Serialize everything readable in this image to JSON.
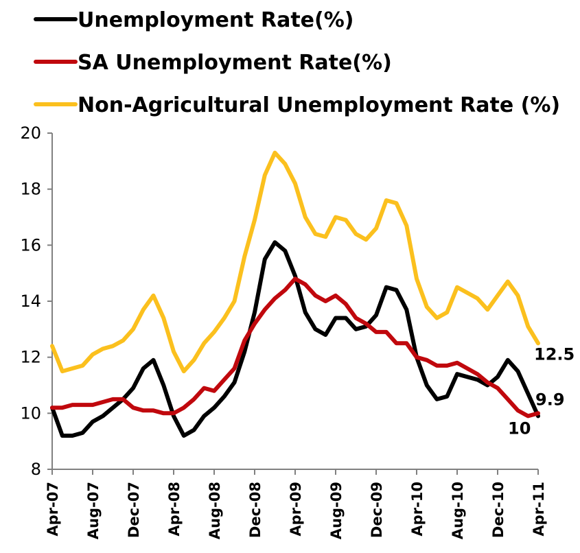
{
  "chart_data": {
    "type": "line",
    "title": "",
    "xlabel": "",
    "ylabel": "",
    "ylim": [
      8,
      20
    ],
    "yticks": [
      8,
      10,
      12,
      14,
      16,
      18,
      20
    ],
    "grid": false,
    "legend_position": "top",
    "x": [
      "Apr-07",
      "May-07",
      "Jun-07",
      "Jul-07",
      "Aug-07",
      "Sep-07",
      "Oct-07",
      "Nov-07",
      "Dec-07",
      "Jan-08",
      "Feb-08",
      "Mar-08",
      "Apr-08",
      "May-08",
      "Jun-08",
      "Jul-08",
      "Aug-08",
      "Sep-08",
      "Oct-08",
      "Nov-08",
      "Dec-08",
      "Jan-09",
      "Feb-09",
      "Mar-09",
      "Apr-09",
      "May-09",
      "Jun-09",
      "Jul-09",
      "Aug-09",
      "Sep-09",
      "Oct-09",
      "Nov-09",
      "Dec-09",
      "Jan-10",
      "Feb-10",
      "Mar-10",
      "Apr-10",
      "May-10",
      "Jun-10",
      "Jul-10",
      "Aug-10",
      "Sep-10",
      "Oct-10",
      "Nov-10",
      "Dec-10",
      "Jan-11",
      "Feb-11",
      "Mar-11",
      "Apr-11"
    ],
    "x_tick_labels": [
      "Apr-07",
      "Aug-07",
      "Dec-07",
      "Apr-08",
      "Aug-08",
      "Dec-08",
      "Apr-09",
      "Aug-09",
      "Dec-09",
      "Apr-10",
      "Aug-10",
      "Dec-10",
      "Apr-11"
    ],
    "series": [
      {
        "name": "Unemployment Rate(%)",
        "color": "#000000",
        "values": [
          10.2,
          9.2,
          9.2,
          9.3,
          9.7,
          9.9,
          10.2,
          10.5,
          10.9,
          11.6,
          11.9,
          11.0,
          9.9,
          9.2,
          9.4,
          9.9,
          10.2,
          10.6,
          11.1,
          12.2,
          13.6,
          15.5,
          16.1,
          15.8,
          14.9,
          13.6,
          13.0,
          12.8,
          13.4,
          13.4,
          13.0,
          13.1,
          13.5,
          14.5,
          14.4,
          13.7,
          12.0,
          11.0,
          10.5,
          10.6,
          11.4,
          11.3,
          11.2,
          11.0,
          11.3,
          11.9,
          11.5,
          10.7,
          9.9
        ],
        "end_label": "9.9"
      },
      {
        "name": "SA Unemployment Rate(%)",
        "color": "#c0080d",
        "values": [
          10.2,
          10.2,
          10.3,
          10.3,
          10.3,
          10.4,
          10.5,
          10.5,
          10.2,
          10.1,
          10.1,
          10.0,
          10.0,
          10.2,
          10.5,
          10.9,
          10.8,
          11.2,
          11.6,
          12.6,
          13.2,
          13.7,
          14.1,
          14.4,
          14.8,
          14.6,
          14.2,
          14.0,
          14.2,
          13.9,
          13.4,
          13.2,
          12.9,
          12.9,
          12.5,
          12.5,
          12.0,
          11.9,
          11.7,
          11.7,
          11.8,
          11.6,
          11.4,
          11.1,
          10.9,
          10.5,
          10.1,
          9.9,
          10.0
        ],
        "end_label": "10"
      },
      {
        "name": "Non-Agricultural Unemployment Rate (%)",
        "color": "#fbc01e",
        "values": [
          12.4,
          11.5,
          11.6,
          11.7,
          12.1,
          12.3,
          12.4,
          12.6,
          13.0,
          13.7,
          14.2,
          13.4,
          12.2,
          11.5,
          11.9,
          12.5,
          12.9,
          13.4,
          14.0,
          15.6,
          16.9,
          18.5,
          19.3,
          18.9,
          18.2,
          17.0,
          16.4,
          16.3,
          17.0,
          16.9,
          16.4,
          16.2,
          16.6,
          17.6,
          17.5,
          16.7,
          14.8,
          13.8,
          13.4,
          13.6,
          14.5,
          14.3,
          14.1,
          13.7,
          14.2,
          14.7,
          14.2,
          13.1,
          12.5
        ],
        "end_label": "12.5"
      }
    ]
  }
}
